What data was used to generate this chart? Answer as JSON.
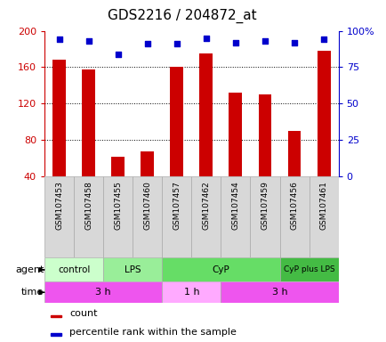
{
  "title": "GDS2216 / 204872_at",
  "samples": [
    "GSM107453",
    "GSM107458",
    "GSM107455",
    "GSM107460",
    "GSM107457",
    "GSM107462",
    "GSM107454",
    "GSM107459",
    "GSM107456",
    "GSM107461"
  ],
  "counts": [
    168,
    158,
    62,
    68,
    160,
    175,
    132,
    130,
    90,
    178
  ],
  "percentiles": [
    94,
    93,
    84,
    91,
    91,
    95,
    92,
    93,
    92,
    94
  ],
  "ylim_left": [
    40,
    200
  ],
  "ylim_right": [
    0,
    100
  ],
  "yticks_left": [
    40,
    80,
    120,
    160,
    200
  ],
  "yticks_right": [
    0,
    25,
    50,
    75,
    100
  ],
  "ytick_right_labels": [
    "0",
    "25",
    "50",
    "75",
    "100%"
  ],
  "grid_lines": [
    80,
    120,
    160
  ],
  "bar_color": "#cc0000",
  "dot_color": "#0000cc",
  "agent_groups": [
    {
      "label": "control",
      "start": 0,
      "end": 2,
      "color": "#ccffcc"
    },
    {
      "label": "LPS",
      "start": 2,
      "end": 4,
      "color": "#99ee99"
    },
    {
      "label": "CyP",
      "start": 4,
      "end": 8,
      "color": "#66dd66"
    },
    {
      "label": "CyP plus LPS",
      "start": 8,
      "end": 10,
      "color": "#44bb44"
    }
  ],
  "time_groups": [
    {
      "label": "3 h",
      "start": 0,
      "end": 4,
      "color": "#ee55ee"
    },
    {
      "label": "1 h",
      "start": 4,
      "end": 6,
      "color": "#ffaaff"
    },
    {
      "label": "3 h",
      "start": 6,
      "end": 10,
      "color": "#ee55ee"
    }
  ],
  "agent_label": "agent",
  "time_label": "time",
  "legend_count_label": "count",
  "legend_pct_label": "percentile rank within the sample",
  "left_axis_color": "#cc0000",
  "right_axis_color": "#0000cc",
  "sample_cell_color": "#d8d8d8",
  "background_color": "#ffffff"
}
